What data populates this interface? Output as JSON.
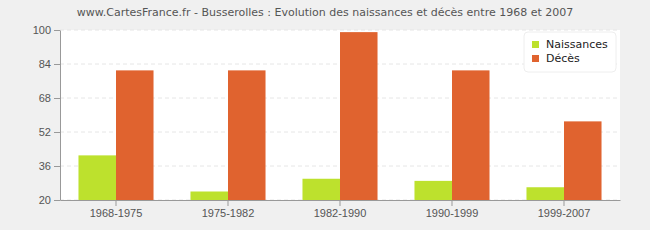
{
  "chart_data": {
    "type": "bar",
    "title": "www.CartesFrance.fr - Busserolles : Evolution des naissances et décès entre 1968 et 2007",
    "categories": [
      "1968-1975",
      "1975-1982",
      "1982-1990",
      "1990-1999",
      "1999-2007"
    ],
    "series": [
      {
        "name": "Naissances",
        "color": "#bde12d",
        "values": [
          41,
          24,
          30,
          29,
          26
        ]
      },
      {
        "name": "Décès",
        "color": "#e0632f",
        "values": [
          81,
          81,
          99,
          81,
          57
        ]
      }
    ],
    "ylim": [
      20,
      100
    ],
    "yticks": [
      20,
      36,
      52,
      68,
      84,
      100
    ],
    "grid": true,
    "legend": "top-right"
  }
}
